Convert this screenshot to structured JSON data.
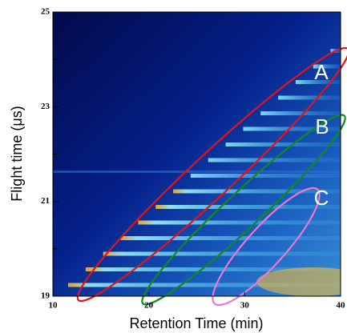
{
  "chart_data": {
    "type": "heatmap",
    "x_label": "Retention Time (min)",
    "y_label": "Flight time (μs)",
    "xlim": [
      10,
      40
    ],
    "xticks": [
      10,
      20,
      30,
      40
    ],
    "ylim": [
      19,
      25
    ],
    "yticks": [
      19,
      21,
      23,
      25
    ],
    "yminorticks": [
      20,
      22,
      24
    ],
    "annotations": [
      {
        "label": "A",
        "color": "#e0141c"
      },
      {
        "label": "B",
        "color": "#0e8a1e"
      },
      {
        "label": "C",
        "color": "#ee78d0"
      }
    ]
  }
}
